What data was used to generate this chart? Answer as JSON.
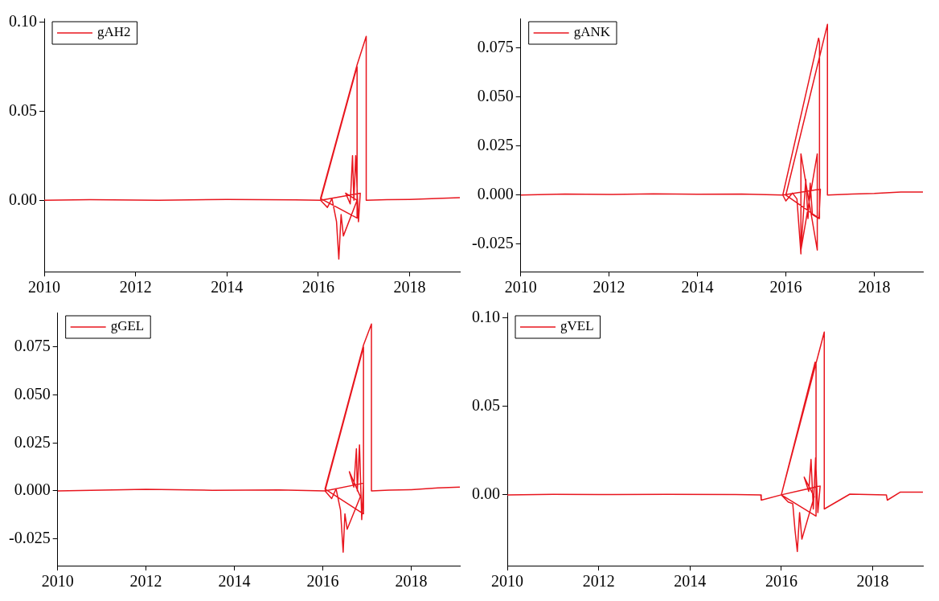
{
  "chart_data": [
    {
      "type": "line",
      "xlim": [
        2010,
        2019.1
      ],
      "xticks": [
        2010,
        2012,
        2014,
        2016,
        2018
      ],
      "ylim": [
        -0.04,
        0.102
      ],
      "yticks": [
        {
          "value": 0,
          "label": "0.00"
        },
        0.05,
        {
          "value": 0.1,
          "label": "0.10"
        }
      ],
      "legend": "top left",
      "grid": false,
      "series": [
        {
          "name": "gAH2",
          "color": "#e8161e",
          "x": [
            2010,
            2011,
            2012.5,
            2014,
            2015.5,
            2016.05,
            2016.2,
            2016.3,
            2016.4,
            2016.45,
            2016.5,
            2016.55,
            2016.85,
            2016.6,
            2016.7,
            2016.75,
            2016.78,
            2016.82,
            2016.88,
            2016.92,
            2016.05,
            2016.85,
            2016.85,
            2016.05,
            2016.85,
            2017.05,
            2017.05,
            2017.5,
            2018,
            2018.6,
            2019.1
          ],
          "values": [
            0,
            0.0003,
            0,
            0.0005,
            0.0002,
            0,
            -0.004,
            0.001,
            -0.012,
            -0.033,
            -0.008,
            -0.02,
            0,
            0.004,
            -0.002,
            0.025,
            0,
            0.025,
            -0.012,
            0.004,
            0,
            0.075,
            -0.01,
            0.001,
            0.076,
            0.092,
            0,
            0.0003,
            0.0005,
            0.001,
            0.0015
          ]
        }
      ]
    },
    {
      "type": "line",
      "xlim": [
        2010,
        2019.1
      ],
      "xticks": [
        2010,
        2012,
        2014,
        2016,
        2018
      ],
      "ylim": [
        -0.039,
        0.09
      ],
      "yticks": [
        -0.025,
        {
          "value": 0,
          "label": "0.000"
        },
        0.025,
        {
          "value": 0.05,
          "label": "0.050"
        },
        0.075
      ],
      "legend": "top left",
      "grid": false,
      "series": [
        {
          "name": "gANK",
          "color": "#e8161e",
          "x": [
            2010,
            2011,
            2012,
            2013,
            2014,
            2015,
            2015.93,
            2016.0,
            2016.15,
            2016.25,
            2016.34,
            2016.34,
            2016.71,
            2016.71,
            2016.34,
            2016.45,
            2016.5,
            2016.55,
            2016.6,
            2016.75,
            2016.78,
            2015.93,
            2016.74,
            2016.76,
            2016.76,
            2016.0,
            2016.94,
            2016.94,
            2017.5,
            2018,
            2018.6,
            2019.1
          ],
          "values": [
            0,
            0.0005,
            0.0003,
            0.0006,
            0.0004,
            0.0005,
            0,
            -0.003,
            0.001,
            -0.002,
            -0.03,
            0.021,
            -0.028,
            0.021,
            -0.028,
            0.008,
            -0.012,
            0.006,
            -0.01,
            -0.012,
            0.003,
            0,
            0.08,
            0.078,
            -0.012,
            0,
            0.087,
            0,
            0.0005,
            0.0008,
            0.0015,
            0.0015
          ]
        }
      ]
    },
    {
      "type": "line",
      "xlim": [
        2010,
        2019.1
      ],
      "xticks": [
        2010,
        2012,
        2014,
        2016,
        2018
      ],
      "ylim": [
        -0.039,
        0.093
      ],
      "yticks": [
        -0.025,
        {
          "value": 0,
          "label": "0.000"
        },
        0.025,
        {
          "value": 0.05,
          "label": "0.050"
        },
        0.075
      ],
      "legend": "top left",
      "grid": false,
      "series": [
        {
          "name": "gGEL",
          "color": "#e8161e",
          "x": [
            2010,
            2011,
            2012,
            2013.5,
            2015,
            2016.05,
            2016.2,
            2016.3,
            2016.4,
            2016.46,
            2016.5,
            2016.55,
            2016.85,
            2016.6,
            2016.7,
            2016.76,
            2016.78,
            2016.83,
            2016.88,
            2016.92,
            2016.05,
            2016.92,
            2016.92,
            2016.05,
            2016.92,
            2017.1,
            2017.1,
            2017.5,
            2018,
            2018.6,
            2019.1
          ],
          "values": [
            0,
            0.0004,
            0.0008,
            0.0003,
            0.0005,
            0,
            -0.004,
            0.001,
            -0.01,
            -0.032,
            -0.012,
            -0.02,
            -0.003,
            0.01,
            0.002,
            0.022,
            0,
            0.024,
            -0.015,
            0.004,
            0,
            0.075,
            -0.012,
            0.001,
            0.076,
            0.087,
            0,
            0.0004,
            0.0006,
            0.0015,
            0.002
          ]
        }
      ]
    },
    {
      "type": "line",
      "xlim": [
        2010,
        2019.1
      ],
      "xticks": [
        2010,
        2012,
        2014,
        2016,
        2018
      ],
      "ylim": [
        -0.04,
        0.103
      ],
      "yticks": [
        {
          "value": 0,
          "label": "0.00"
        },
        0.05,
        {
          "value": 0.1,
          "label": "0.10"
        }
      ],
      "legend": "top left",
      "grid": false,
      "series": [
        {
          "name": "gVEL",
          "color": "#e8161e",
          "x": [
            2010,
            2011,
            2012,
            2013.5,
            2015,
            2015.55,
            2015.56,
            2016.0,
            2016.15,
            2016.25,
            2016.3,
            2016.35,
            2016.4,
            2016.45,
            2016.72,
            2016.5,
            2016.6,
            2016.65,
            2016.7,
            2016.75,
            2016.8,
            2016.85,
            2016.0,
            2016.74,
            2016.76,
            2016.76,
            2016.0,
            2016.94,
            2016.94,
            2017.5,
            2018.3,
            2018.32,
            2018.6,
            2019.1
          ],
          "values": [
            0,
            0.0003,
            0.0002,
            0.0003,
            0.0002,
            0,
            -0.003,
            0,
            -0.004,
            -0.005,
            -0.02,
            -0.032,
            -0.01,
            -0.025,
            -0.001,
            0.01,
            0.002,
            0.02,
            -0.008,
            0.021,
            -0.01,
            0.005,
            0,
            0.075,
            0.074,
            -0.012,
            0,
            0.092,
            -0.008,
            0.0004,
            0,
            -0.003,
            0.0015,
            0.0015
          ]
        }
      ]
    }
  ]
}
